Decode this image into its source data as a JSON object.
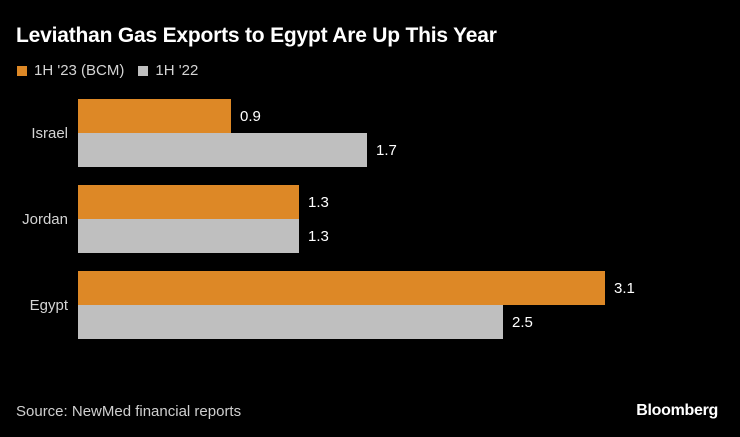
{
  "chart_data": {
    "type": "bar",
    "orientation": "horizontal",
    "title": "Leviathan Gas Exports to Egypt Are Up This Year",
    "categories": [
      "Israel",
      "Jordan",
      "Egypt"
    ],
    "series": [
      {
        "name": "1H '23 (BCM)",
        "color": "#dd8826",
        "values": [
          0.9,
          1.3,
          3.1
        ]
      },
      {
        "name": "1H '22",
        "color": "#bfbfbf",
        "values": [
          1.7,
          1.3,
          2.5
        ]
      }
    ],
    "xlabel": "",
    "ylabel": "",
    "xlim": [
      0,
      3.1
    ],
    "grid": false,
    "legend": "top-left",
    "data_labels": true
  },
  "footer": {
    "source": "Source: NewMed financial reports",
    "brand": "Bloomberg"
  }
}
